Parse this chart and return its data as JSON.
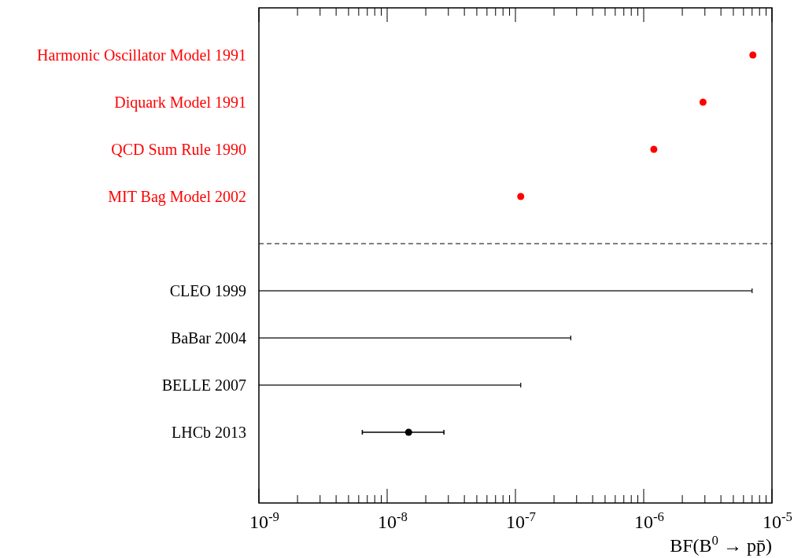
{
  "chart_data": {
    "type": "scatter",
    "orientation": "horizontal",
    "xlabel": "BF(B$^{0}$ → pp̄)",
    "log": "x",
    "categories": [
      "Harmonic Oscillator Model 1991",
      "Diquark Model 1991",
      "QCD Sum Rule 1990",
      "MIT Bag Model 2002",
      null,
      "CLEO 1999",
      "BaBar 2004",
      "BELLE 2007",
      "LHCb 2013",
      null
    ],
    "xlim": [
      1e-09,
      1e-05
    ],
    "xticks": [
      {
        "value": 1e-09,
        "label": "10$^{-9}$"
      },
      {
        "value": 2e-09,
        "label": null
      },
      {
        "value": 3e-09,
        "label": null
      },
      {
        "value": 4e-09,
        "label": null
      },
      {
        "value": 5e-09,
        "label": null
      },
      {
        "value": 6e-09,
        "label": null
      },
      {
        "value": 7e-09,
        "label": null
      },
      {
        "value": 8e-09,
        "label": null
      },
      {
        "value": 9e-09,
        "label": null
      },
      {
        "value": 1e-08,
        "label": "10$^{-8}$"
      },
      {
        "value": 2e-08,
        "label": null
      },
      {
        "value": 3e-08,
        "label": null
      },
      {
        "value": 4e-08,
        "label": null
      },
      {
        "value": 5e-08,
        "label": null
      },
      {
        "value": 6e-08,
        "label": null
      },
      {
        "value": 7e-08,
        "label": null
      },
      {
        "value": 8e-08,
        "label": null
      },
      {
        "value": 9e-08,
        "label": null
      },
      {
        "value": 1e-07,
        "label": "10$^{-7}$"
      },
      {
        "value": 2e-07,
        "label": null
      },
      {
        "value": 3e-07,
        "label": null
      },
      {
        "value": 4e-07,
        "label": null
      },
      {
        "value": 5e-07,
        "label": null
      },
      {
        "value": 6e-07,
        "label": null
      },
      {
        "value": 7e-07,
        "label": null
      },
      {
        "value": 8e-07,
        "label": null
      },
      {
        "value": 9e-07,
        "label": null
      },
      {
        "value": 1e-06,
        "label": "10$^{-6}$"
      },
      {
        "value": 2e-06,
        "label": null
      },
      {
        "value": 3e-06,
        "label": null
      },
      {
        "value": 4e-06,
        "label": null
      },
      {
        "value": 5e-06,
        "label": null
      },
      {
        "value": 6e-06,
        "label": null
      },
      {
        "value": 7e-06,
        "label": null
      },
      {
        "value": 8e-06,
        "label": null
      },
      {
        "value": 9e-06,
        "label": null
      },
      {
        "value": 1e-05,
        "label": "10$^{-5}$"
      }
    ],
    "series": [
      {
        "color": "#ff0000",
        "values": [
          7.1e-06,
          2.9e-06,
          1.2e-06,
          1.1e-07,
          null,
          null,
          null,
          null,
          null,
          null
        ]
      },
      {
        "type": "bar",
        "color": "#000000",
        "values": [
          null,
          null,
          null,
          null,
          null,
          7e-06,
          2.7e-07,
          1.1e-07,
          null,
          null
        ]
      },
      {
        "color": "#000000",
        "values": [
          null,
          null,
          null,
          null,
          null,
          null,
          null,
          null,
          1.47e-08,
          null
        ],
        "errors": [
          null,
          null,
          null,
          null,
          null,
          null,
          null,
          null,
          [
            6.4e-09,
            2.77e-08
          ],
          null
        ]
      }
    ],
    "marker": "circle"
  }
}
